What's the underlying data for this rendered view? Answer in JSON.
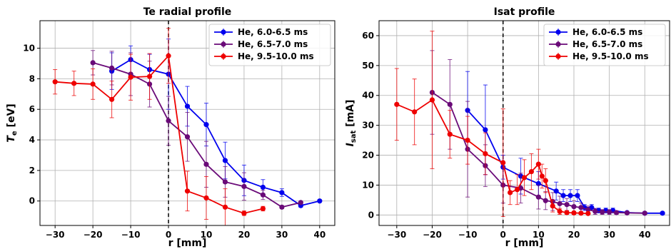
{
  "chart_data": [
    {
      "type": "line",
      "title": "Te radial profile",
      "xlabel": "r [mm]",
      "ylabel_main": "T",
      "ylabel_sub": "e",
      "ylabel_unit": " [eV]",
      "xlim": [
        -34,
        44
      ],
      "ylim": [
        -1.6,
        11.8
      ],
      "xticks": [
        -30,
        -20,
        -10,
        0,
        10,
        20,
        30,
        40
      ],
      "yticks": [
        0,
        2,
        4,
        6,
        8,
        10
      ],
      "grid": true,
      "vline_x": 0,
      "legend_position": "top-right",
      "series": [
        {
          "name": "He, 6.0-6.5 ms",
          "color": "#0000ee",
          "x": [
            -15,
            -10,
            -5,
            0,
            5,
            10,
            15,
            20,
            25,
            30,
            35,
            40
          ],
          "y": [
            8.5,
            9.25,
            8.6,
            8.3,
            6.2,
            5.0,
            2.65,
            1.35,
            0.9,
            0.55,
            -0.3,
            0.0
          ],
          "err": [
            1.2,
            0.9,
            1.0,
            2.3,
            1.3,
            1.4,
            1.2,
            1.0,
            0.5,
            0.25,
            0.1,
            0.05
          ]
        },
        {
          "name": "He, 6.5-7.0 ms",
          "color": "#6a0a78",
          "x": [
            -20,
            -15,
            -10,
            -5,
            0,
            5,
            10,
            15,
            20,
            25,
            30,
            35
          ],
          "y": [
            9.05,
            8.7,
            8.3,
            7.65,
            5.25,
            4.2,
            2.4,
            1.25,
            0.95,
            0.4,
            -0.4,
            -0.1
          ],
          "err": [
            0.8,
            1.1,
            1.4,
            1.5,
            1.6,
            1.6,
            1.5,
            1.0,
            0.9,
            0.3,
            0.1,
            0.1
          ]
        },
        {
          "name": "He, 9.5-10.0 ms",
          "color": "#ee0000",
          "x": [
            -30,
            -25,
            -20,
            -15,
            -10,
            -5,
            0,
            5,
            10,
            15,
            20,
            25
          ],
          "y": [
            7.8,
            7.7,
            7.65,
            6.65,
            8.1,
            8.15,
            9.5,
            0.65,
            0.2,
            -0.4,
            -0.8,
            -0.5
          ],
          "err": [
            0.8,
            0.8,
            1.0,
            1.2,
            1.5,
            1.5,
            1.8,
            1.3,
            1.4,
            1.2,
            0.15,
            0.15
          ]
        }
      ]
    },
    {
      "type": "line",
      "title": "Isat profile",
      "xlabel": "r [mm]",
      "ylabel_main": "I",
      "ylabel_sub": "sat",
      "ylabel_unit": " [mA]",
      "xlim": [
        -35,
        47
      ],
      "ylim": [
        -3.5,
        65
      ],
      "xticks": [
        -30,
        -20,
        -10,
        0,
        10,
        20,
        30,
        40
      ],
      "yticks": [
        0,
        10,
        20,
        30,
        40,
        50,
        60
      ],
      "grid": true,
      "vline_x": 0,
      "legend_position": "top-right",
      "series": [
        {
          "name": "He, 6.0-6.5 ms",
          "color": "#0000ee",
          "x": [
            -10,
            -5,
            0,
            5,
            10,
            15,
            17,
            19,
            21,
            23,
            25,
            27,
            29,
            31,
            35,
            40,
            45
          ],
          "y": [
            35,
            28.5,
            16,
            13,
            10.5,
            8,
            6.5,
            6.5,
            6.5,
            2.5,
            2.5,
            1.5,
            1.5,
            1.5,
            0.8,
            0.6,
            0.6
          ],
          "err": [
            13,
            15,
            4,
            6,
            4,
            3,
            2,
            2,
            2,
            1,
            1,
            0.8,
            0.8,
            0.8,
            0.4,
            0.3,
            0.3
          ]
        },
        {
          "name": "He, 6.5-7.0 ms",
          "color": "#6a0a78",
          "x": [
            -20,
            -15,
            -10,
            -5,
            0,
            5,
            10,
            12,
            14,
            16,
            18,
            20,
            22,
            24,
            26,
            28,
            30,
            32,
            35,
            40
          ],
          "y": [
            41,
            37,
            22,
            16.5,
            10,
            9,
            6,
            4.8,
            4.5,
            3.8,
            3.5,
            2.8,
            2.5,
            1.8,
            1.2,
            1,
            1,
            0.8,
            0.7,
            0.6
          ],
          "err": [
            14,
            15,
            16,
            7,
            6,
            5,
            4,
            3,
            3,
            2.5,
            2,
            2,
            1.5,
            1.2,
            1,
            0.8,
            0.8,
            0.6,
            0.4,
            0.3
          ]
        },
        {
          "name": "He, 9.5-10.0 ms",
          "color": "#ee0000",
          "x": [
            -30,
            -25,
            -20,
            -15,
            -10,
            -5,
            0,
            2,
            4,
            6,
            8,
            10,
            11,
            12,
            14,
            16,
            18,
            20,
            22,
            24
          ],
          "y": [
            37,
            34.5,
            38.5,
            27,
            25,
            20.5,
            17.5,
            7.5,
            8.5,
            12.5,
            14.5,
            17,
            13,
            11.5,
            3,
            1.2,
            0.8,
            0.7,
            0.6,
            0.5
          ],
          "err": [
            12,
            11,
            23,
            8,
            8,
            7,
            18,
            4,
            5,
            6,
            6,
            5,
            4,
            4,
            2,
            1,
            0.6,
            0.5,
            0.4,
            0.4
          ]
        }
      ]
    }
  ]
}
